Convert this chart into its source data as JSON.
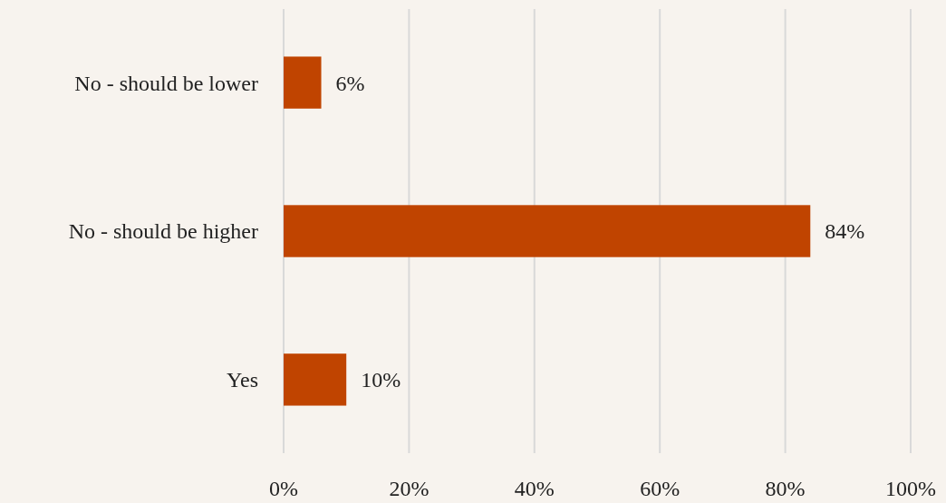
{
  "chart_data": {
    "type": "bar",
    "orientation": "horizontal",
    "categories": [
      "No - should be lower",
      "No - should be higher",
      "Yes"
    ],
    "values": [
      6,
      84,
      10
    ],
    "value_labels": [
      "6%",
      "84%",
      "10%"
    ],
    "color": "#c04400",
    "xlim": [
      0,
      100
    ],
    "xticks": [
      {
        "value": 0,
        "label": "0%"
      },
      {
        "value": 20,
        "label": "20%"
      },
      {
        "value": 40,
        "label": "40%"
      },
      {
        "value": 60,
        "label": "60%"
      },
      {
        "value": 80,
        "label": "80%"
      },
      {
        "value": 100,
        "label": "100%"
      }
    ],
    "grid": "x"
  }
}
